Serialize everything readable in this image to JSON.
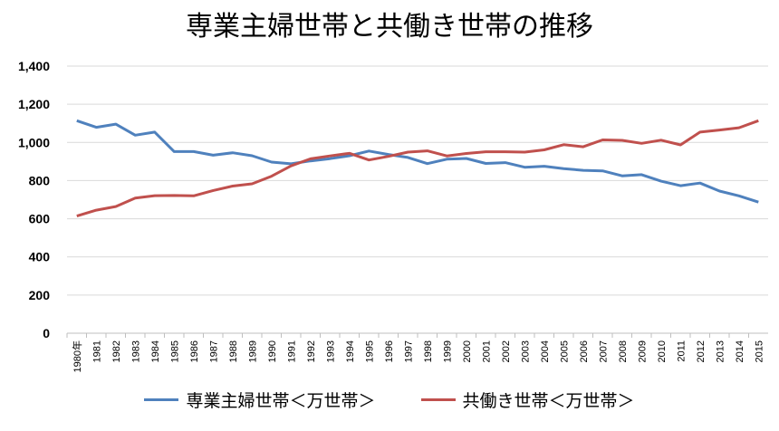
{
  "chart_data": {
    "type": "line",
    "title": "専業主婦世帯と共働き世帯の推移",
    "xlabel": "",
    "ylabel": "",
    "ylim": [
      0,
      1400
    ],
    "yticks": [
      0,
      200,
      400,
      600,
      800,
      1000,
      1200,
      1400
    ],
    "ytick_labels": [
      "0",
      "200",
      "400",
      "600",
      "800",
      "1,000",
      "1,200",
      "1,400"
    ],
    "categories": [
      "1980年",
      "1981",
      "1982",
      "1983",
      "1984",
      "1985",
      "1986",
      "1987",
      "1988",
      "1989",
      "1990",
      "1991",
      "1992",
      "1993",
      "1994",
      "1995",
      "1996",
      "1997",
      "1998",
      "1999",
      "2000",
      "2001",
      "2002",
      "2003",
      "2004",
      "2005",
      "2006",
      "2007",
      "2008",
      "2009",
      "2010",
      "2011",
      "2012",
      "2013",
      "2014",
      "2015"
    ],
    "series": [
      {
        "name": "専業主婦世帯＜万世帯＞",
        "color": "#4f81bd",
        "values": [
          1114,
          1079,
          1096,
          1038,
          1054,
          952,
          952,
          933,
          946,
          930,
          897,
          888,
          903,
          915,
          930,
          955,
          937,
          921,
          889,
          912,
          916,
          890,
          894,
          870,
          875,
          863,
          854,
          851,
          825,
          831,
          797,
          773,
          787,
          745,
          720,
          687
        ]
      },
      {
        "name": "共働き世帯＜万世帯＞",
        "color": "#c0504d",
        "values": [
          614,
          645,
          664,
          708,
          721,
          722,
          720,
          748,
          771,
          783,
          823,
          877,
          914,
          929,
          943,
          908,
          927,
          949,
          956,
          929,
          942,
          951,
          951,
          949,
          961,
          988,
          977,
          1013,
          1011,
          995,
          1012,
          987,
          1054,
          1065,
          1077,
          1114
        ]
      }
    ],
    "grid": true,
    "legend_position": "bottom"
  }
}
